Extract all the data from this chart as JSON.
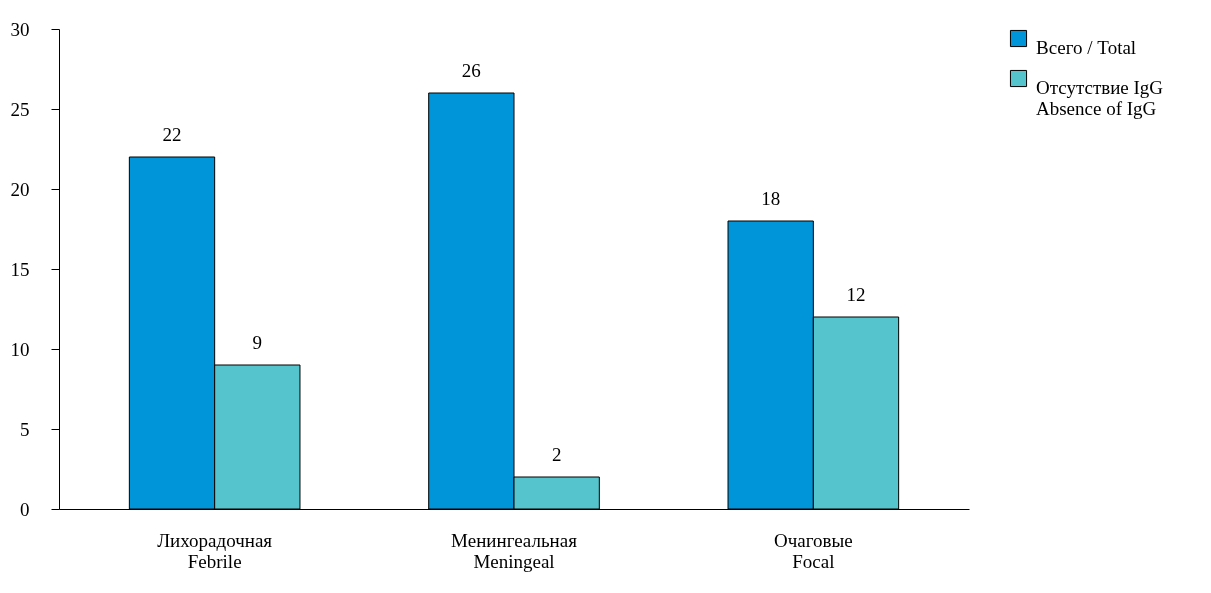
{
  "chart_data": {
    "type": "bar",
    "categories": [
      "Лихорадочная\nFebrile",
      "Менингеальная\nMeningeal",
      "Очаговые\nFocal"
    ],
    "series": [
      {
        "name": "Всего / Total",
        "color": "#0095d8",
        "values": [
          22,
          26,
          18
        ]
      },
      {
        "name": "Отсутствие IgG\nAbsence of IgG",
        "color": "#56c4cc",
        "values": [
          9,
          2,
          12
        ]
      }
    ],
    "ylim": [
      0,
      30
    ],
    "yticks": [
      0,
      5,
      10,
      15,
      20,
      25,
      30
    ],
    "grid": false,
    "legend": "top right",
    "data_labels": true
  }
}
